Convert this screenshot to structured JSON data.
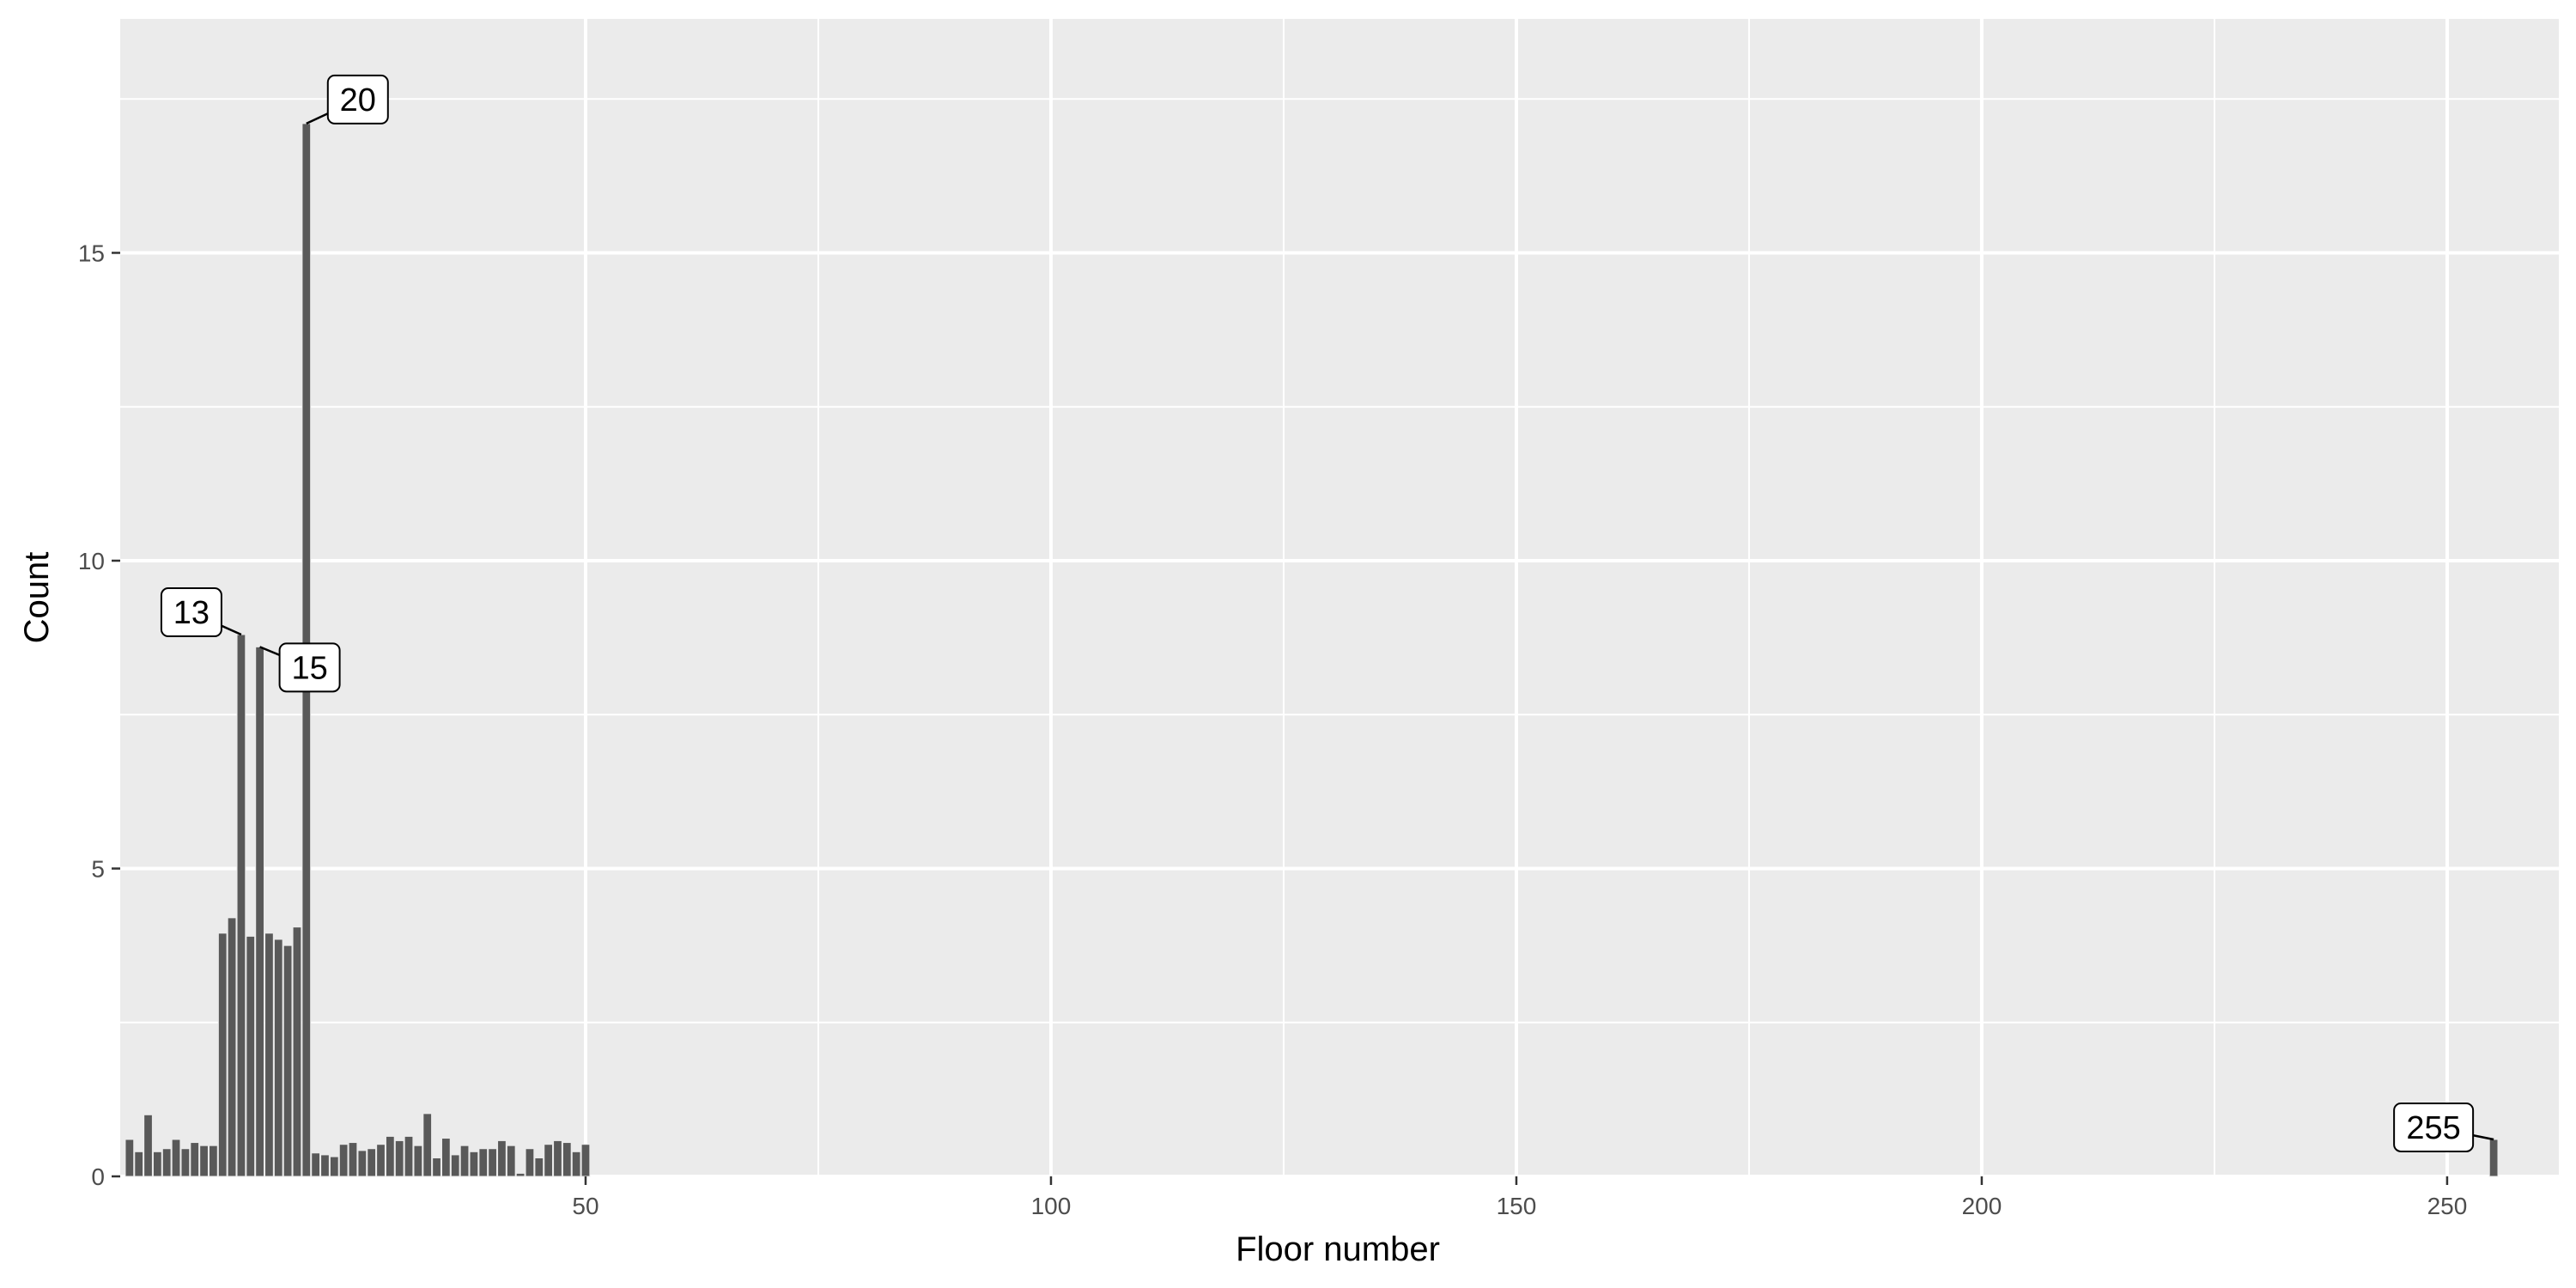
{
  "chart_data": {
    "type": "bar",
    "xlabel": "Floor number",
    "ylabel": "Count",
    "xlim": [
      0,
      262
    ],
    "ylim": [
      0,
      18.8
    ],
    "x_ticks": [
      50,
      100,
      150,
      200,
      250
    ],
    "y_ticks": [
      0,
      5,
      10,
      15
    ],
    "grid": true,
    "x": [
      1,
      2,
      3,
      4,
      5,
      6,
      7,
      8,
      9,
      10,
      11,
      12,
      13,
      14,
      15,
      16,
      17,
      18,
      19,
      20,
      21,
      22,
      23,
      24,
      25,
      26,
      27,
      28,
      29,
      30,
      31,
      32,
      33,
      34,
      35,
      36,
      37,
      38,
      39,
      40,
      41,
      42,
      43,
      44,
      45,
      46,
      47,
      48,
      49,
      50,
      255
    ],
    "values": [
      0.6,
      0.4,
      1.0,
      0.4,
      0.45,
      0.6,
      0.45,
      0.55,
      0.5,
      0.5,
      3.95,
      4.2,
      8.8,
      3.9,
      8.6,
      3.95,
      3.85,
      3.75,
      4.05,
      17.1,
      0.38,
      0.35,
      0.32,
      0.52,
      0.55,
      0.42,
      0.45,
      0.52,
      0.65,
      0.58,
      0.65,
      0.5,
      1.02,
      0.3,
      0.62,
      0.35,
      0.5,
      0.4,
      0.45,
      0.45,
      0.58,
      0.5,
      0.05,
      0.45,
      0.3,
      0.52,
      0.58,
      0.55,
      0.4,
      0.52,
      0.6
    ],
    "annotations": [
      {
        "label": "13",
        "x": 13,
        "y": 8.8
      },
      {
        "label": "15",
        "x": 15,
        "y": 8.6
      },
      {
        "label": "20",
        "x": 20,
        "y": 17.1
      },
      {
        "label": "255",
        "x": 255,
        "y": 0.6
      }
    ],
    "colors": {
      "panel": "#ebebeb",
      "grid_major": "#ffffff",
      "bar_fill": "#595959",
      "bar_outline": "#ebebeb",
      "tick": "#333333"
    }
  }
}
